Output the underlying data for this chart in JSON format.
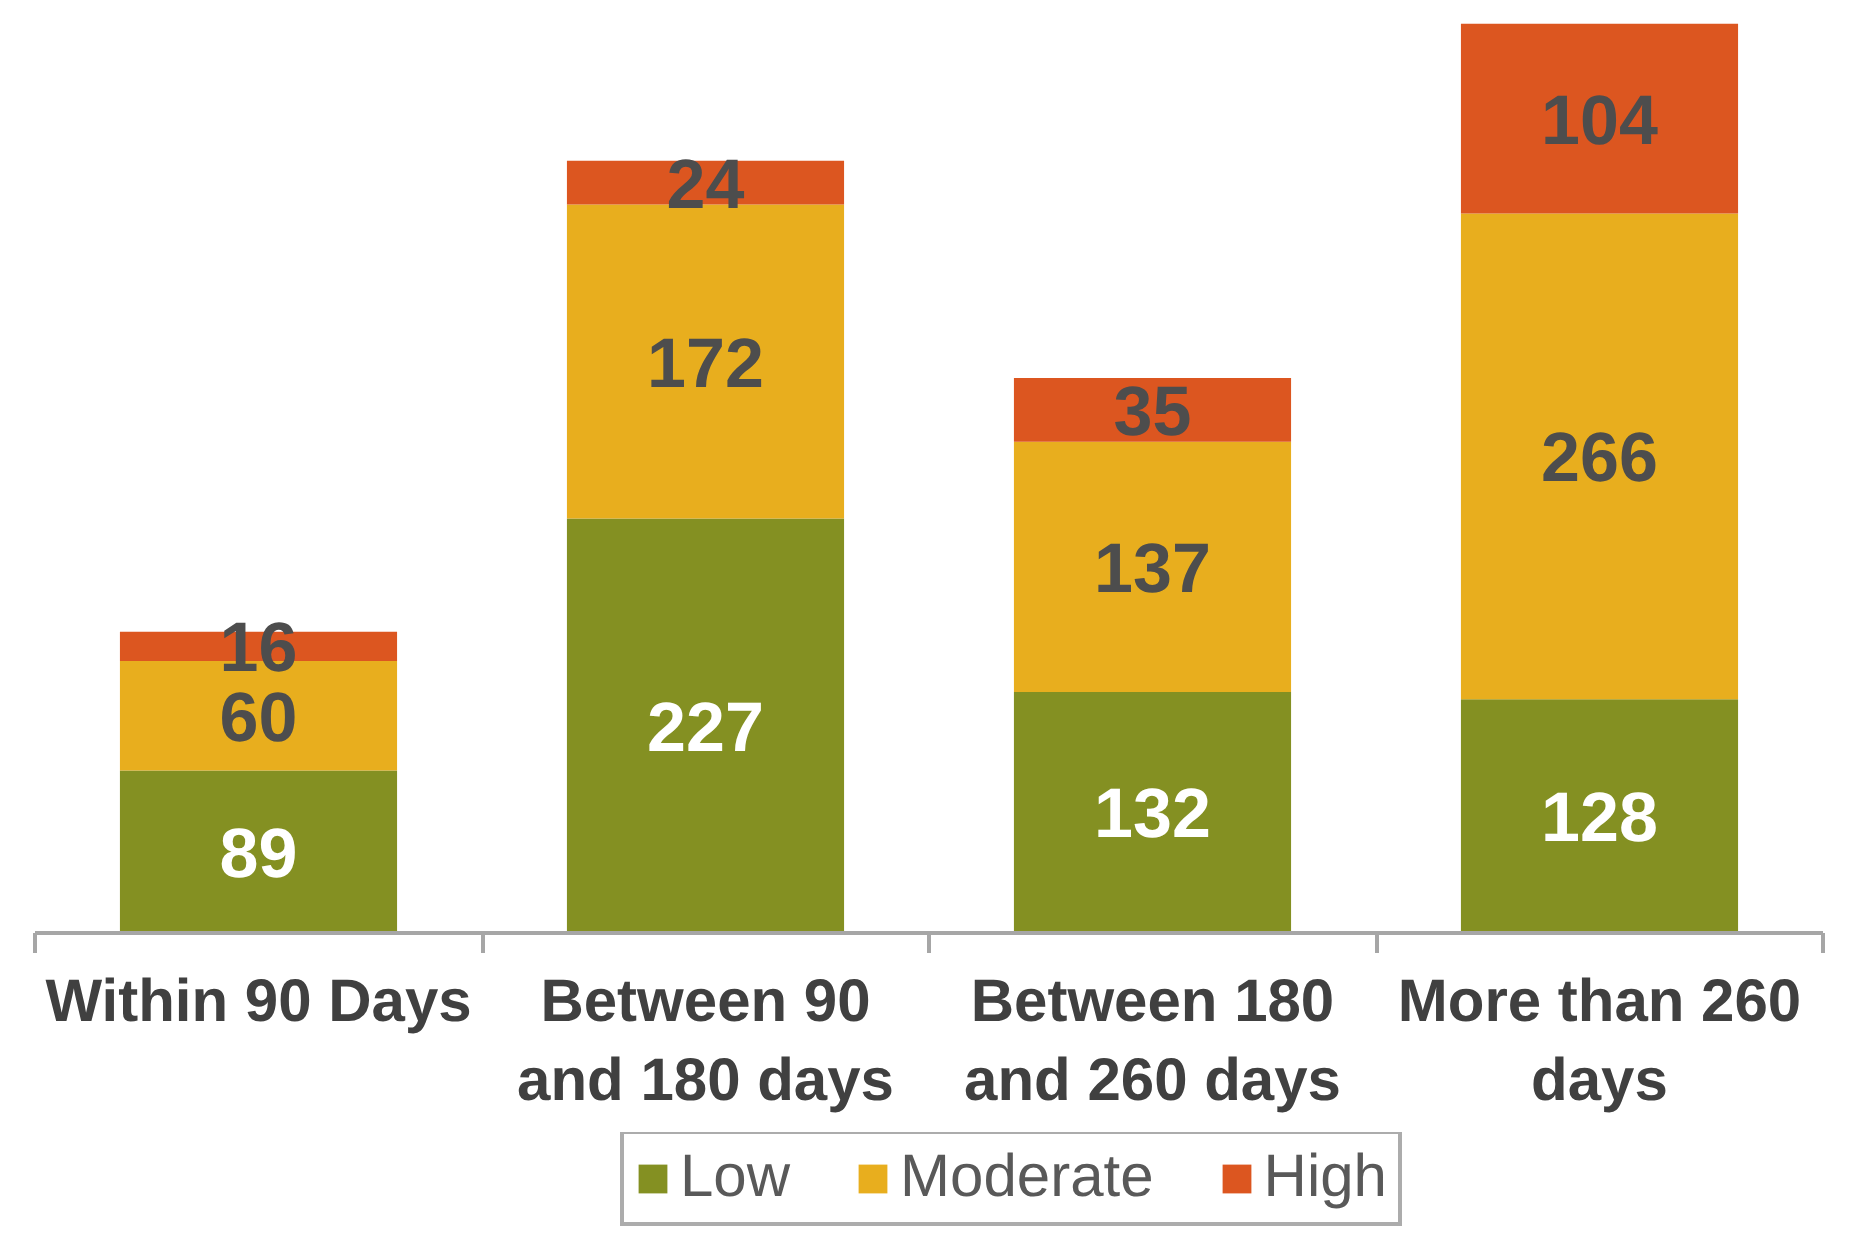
{
  "chart_data": {
    "type": "bar",
    "stacked": true,
    "categories": [
      "Within 90 Days",
      "Between 90 and 180 days",
      "Between 180 and 260 days",
      "More than 260 days"
    ],
    "series": [
      {
        "name": "Low",
        "color": "#849022",
        "values": [
          89,
          227,
          132,
          128
        ]
      },
      {
        "name": "Moderate",
        "color": "#e8ae1e",
        "values": [
          60,
          172,
          137,
          266
        ]
      },
      {
        "name": "High",
        "color": "#dc5620",
        "values": [
          16,
          24,
          35,
          104
        ]
      }
    ],
    "data_labels": true,
    "legend": "bottom",
    "tick_labels": "x"
  }
}
